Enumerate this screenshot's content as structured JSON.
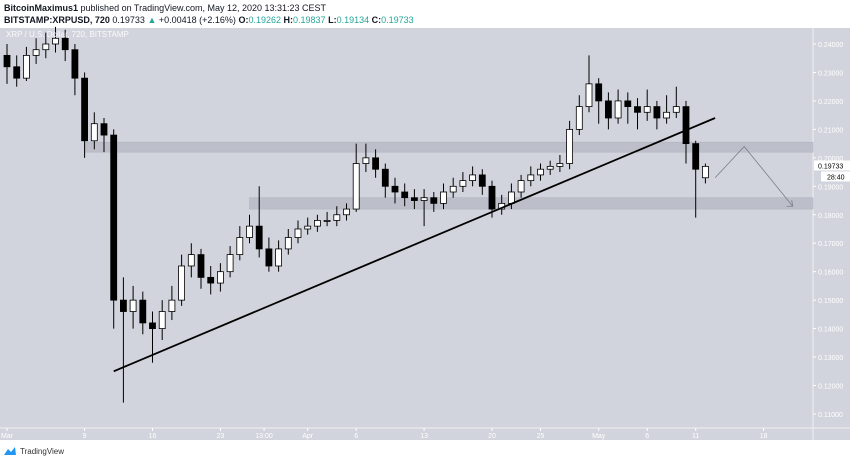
{
  "header": {
    "author": "BitcoinMaximus1",
    "published": "published on TradingView.com, May 12, 2020 13:31:23 CEST",
    "symbol": "BITSTAMP:XRPUSD, 720",
    "last": "0.19733",
    "change": "+0.00418 (+2.16%)",
    "o_label": "O:",
    "o": "0.19262",
    "h_label": "H:",
    "h": "0.19837",
    "l_label": "L:",
    "l": "0.19134",
    "c_label": "C:",
    "c": "0.19733"
  },
  "legend": "XRP / U.S. Dollar, 720, BITSTAMP",
  "footer": {
    "brand": "TradingView",
    "logo_icon": "tradingview-logo-icon"
  },
  "colors": {
    "background": "#d1d4dc",
    "up": "#ffffff",
    "down": "#000000",
    "zone": "#b8bbc6",
    "accent": "#26a69a"
  },
  "chart_data": {
    "type": "candlestick",
    "start_date": "2020-03-01",
    "interval": "1 day (approximate reconstruction of 720-min candles)",
    "ohlc": [
      [
        0.236,
        0.24,
        0.226,
        0.232
      ],
      [
        0.232,
        0.236,
        0.225,
        0.228
      ],
      [
        0.228,
        0.239,
        0.227,
        0.236
      ],
      [
        0.236,
        0.242,
        0.233,
        0.238
      ],
      [
        0.238,
        0.244,
        0.235,
        0.24
      ],
      [
        0.24,
        0.246,
        0.237,
        0.242
      ],
      [
        0.242,
        0.245,
        0.234,
        0.238
      ],
      [
        0.238,
        0.24,
        0.222,
        0.228
      ],
      [
        0.228,
        0.23,
        0.2,
        0.206
      ],
      [
        0.206,
        0.216,
        0.203,
        0.212
      ],
      [
        0.212,
        0.214,
        0.202,
        0.208
      ],
      [
        0.208,
        0.21,
        0.14,
        0.15
      ],
      [
        0.15,
        0.158,
        0.114,
        0.146
      ],
      [
        0.146,
        0.155,
        0.14,
        0.15
      ],
      [
        0.15,
        0.153,
        0.138,
        0.142
      ],
      [
        0.142,
        0.146,
        0.128,
        0.14
      ],
      [
        0.14,
        0.15,
        0.136,
        0.146
      ],
      [
        0.146,
        0.155,
        0.143,
        0.15
      ],
      [
        0.15,
        0.166,
        0.148,
        0.162
      ],
      [
        0.162,
        0.17,
        0.158,
        0.166
      ],
      [
        0.166,
        0.168,
        0.154,
        0.158
      ],
      [
        0.158,
        0.162,
        0.152,
        0.156
      ],
      [
        0.156,
        0.163,
        0.153,
        0.16
      ],
      [
        0.16,
        0.169,
        0.158,
        0.166
      ],
      [
        0.166,
        0.176,
        0.164,
        0.172
      ],
      [
        0.172,
        0.18,
        0.17,
        0.176
      ],
      [
        0.176,
        0.19,
        0.165,
        0.168
      ],
      [
        0.168,
        0.172,
        0.16,
        0.162
      ],
      [
        0.162,
        0.171,
        0.16,
        0.168
      ],
      [
        0.168,
        0.175,
        0.166,
        0.172
      ],
      [
        0.172,
        0.178,
        0.17,
        0.175
      ],
      [
        0.175,
        0.179,
        0.173,
        0.176
      ],
      [
        0.176,
        0.18,
        0.174,
        0.178
      ],
      [
        0.178,
        0.181,
        0.176,
        0.178
      ],
      [
        0.178,
        0.183,
        0.176,
        0.18
      ],
      [
        0.18,
        0.184,
        0.178,
        0.182
      ],
      [
        0.182,
        0.205,
        0.181,
        0.198
      ],
      [
        0.198,
        0.205,
        0.195,
        0.2
      ],
      [
        0.2,
        0.203,
        0.193,
        0.196
      ],
      [
        0.196,
        0.198,
        0.186,
        0.19
      ],
      [
        0.19,
        0.193,
        0.184,
        0.188
      ],
      [
        0.188,
        0.191,
        0.183,
        0.186
      ],
      [
        0.186,
        0.189,
        0.182,
        0.185
      ],
      [
        0.185,
        0.189,
        0.176,
        0.186
      ],
      [
        0.186,
        0.188,
        0.181,
        0.184
      ],
      [
        0.184,
        0.191,
        0.182,
        0.188
      ],
      [
        0.188,
        0.193,
        0.186,
        0.19
      ],
      [
        0.19,
        0.195,
        0.188,
        0.192
      ],
      [
        0.192,
        0.197,
        0.19,
        0.194
      ],
      [
        0.194,
        0.196,
        0.187,
        0.19
      ],
      [
        0.19,
        0.192,
        0.179,
        0.182
      ],
      [
        0.182,
        0.187,
        0.18,
        0.184
      ],
      [
        0.184,
        0.191,
        0.182,
        0.188
      ],
      [
        0.188,
        0.194,
        0.186,
        0.192
      ],
      [
        0.192,
        0.197,
        0.19,
        0.194
      ],
      [
        0.194,
        0.198,
        0.192,
        0.196
      ],
      [
        0.196,
        0.199,
        0.194,
        0.197
      ],
      [
        0.197,
        0.201,
        0.195,
        0.198
      ],
      [
        0.198,
        0.213,
        0.196,
        0.21
      ],
      [
        0.21,
        0.222,
        0.208,
        0.218
      ],
      [
        0.218,
        0.236,
        0.216,
        0.226
      ],
      [
        0.226,
        0.228,
        0.212,
        0.22
      ],
      [
        0.22,
        0.223,
        0.21,
        0.214
      ],
      [
        0.214,
        0.224,
        0.212,
        0.22
      ],
      [
        0.22,
        0.223,
        0.212,
        0.218
      ],
      [
        0.218,
        0.221,
        0.21,
        0.216
      ],
      [
        0.216,
        0.224,
        0.213,
        0.218
      ],
      [
        0.218,
        0.22,
        0.21,
        0.214
      ],
      [
        0.214,
        0.222,
        0.212,
        0.216
      ],
      [
        0.216,
        0.225,
        0.214,
        0.218
      ],
      [
        0.218,
        0.22,
        0.198,
        0.205
      ],
      [
        0.205,
        0.206,
        0.179,
        0.196
      ],
      [
        0.193,
        0.198,
        0.191,
        0.197
      ]
    ],
    "trendline": [
      [
        "2020-03-12",
        0.125
      ],
      [
        "2020-05-13",
        0.214
      ]
    ],
    "zones": [
      {
        "from": 0.202,
        "to": 0.2055,
        "start": "2020-03-09"
      },
      {
        "from": 0.182,
        "to": 0.186,
        "start": "2020-03-26"
      }
    ],
    "projection": [
      [
        "2020-05-13",
        0.193
      ],
      [
        "2020-05-16",
        0.204
      ],
      [
        "2020-05-21",
        0.183
      ]
    ],
    "y_ticks": [
      "0.24000",
      "0.23000",
      "0.22000",
      "0.21000",
      "0.20000",
      "0.19000",
      "0.18000",
      "0.17000",
      "0.16000",
      "0.15000",
      "0.14000",
      "0.13000",
      "0.12000",
      "0.11000"
    ],
    "x_ticks": [
      [
        "Mar",
        0
      ],
      [
        "9",
        8
      ],
      [
        "16",
        15
      ],
      [
        "23",
        22
      ],
      [
        "13:00",
        26.5
      ],
      [
        "Apr",
        31
      ],
      [
        "6",
        36
      ],
      [
        "13",
        43
      ],
      [
        "20",
        50
      ],
      [
        "25",
        55
      ],
      [
        "May",
        61
      ],
      [
        "6",
        66
      ],
      [
        "11",
        71
      ],
      [
        "18",
        78
      ]
    ],
    "last_price_label": "0.19733",
    "countdown": "28:40",
    "ylim": [
      0.105,
      0.2456
    ]
  }
}
